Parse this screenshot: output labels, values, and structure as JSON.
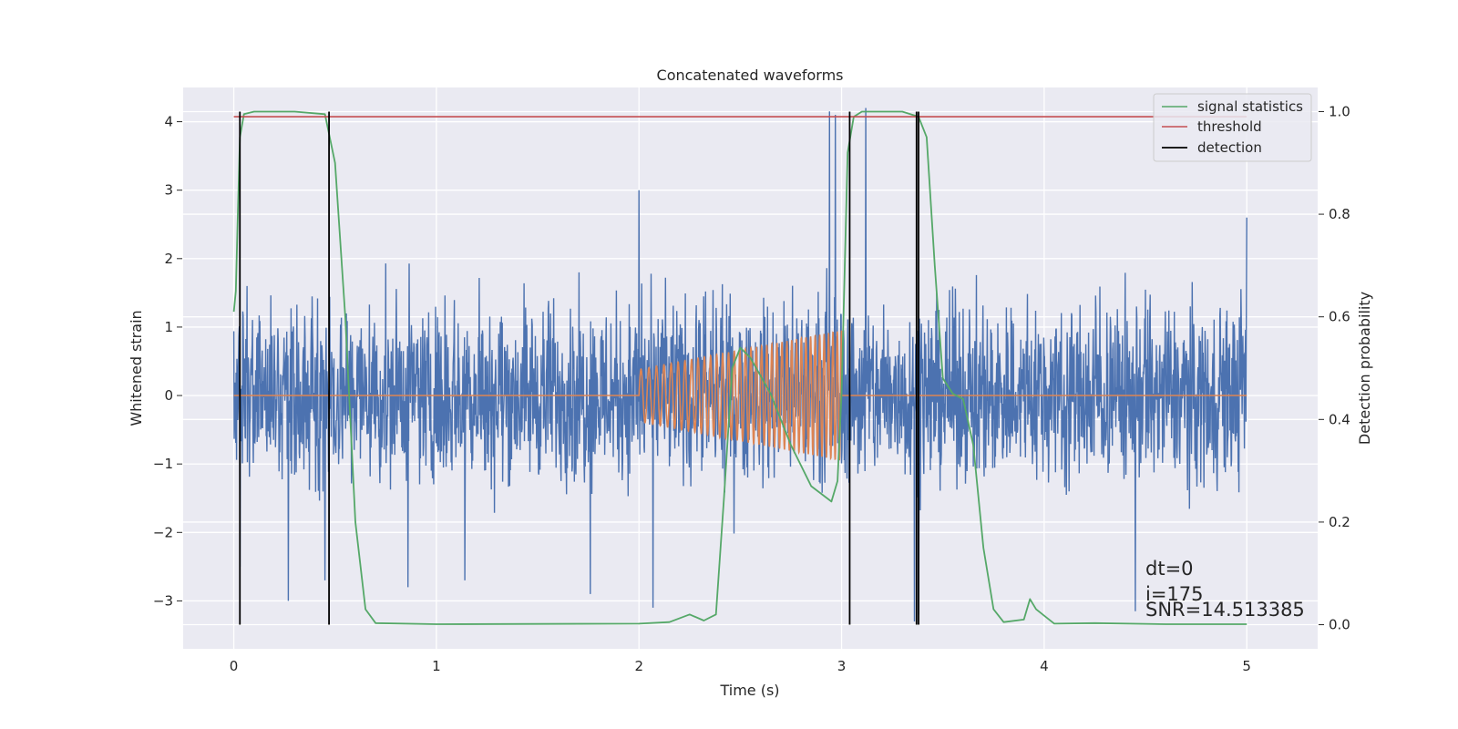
{
  "chart_data": {
    "type": "line",
    "title": "Concatenated waveforms",
    "xlabel": "Time (s)",
    "ylabel": "Whitened strain",
    "ylabel_right": "Detection probability",
    "xlim": [
      -0.25,
      5.35
    ],
    "ylim": [
      -3.7,
      4.5
    ],
    "ylim_right": [
      -0.047,
      1.047
    ],
    "x_ticks": [
      0,
      1,
      2,
      3,
      4,
      5
    ],
    "x_tick_labels": [
      "0",
      "1",
      "2",
      "3",
      "4",
      "5"
    ],
    "y_ticks": [
      -3,
      -2,
      -1,
      0,
      1,
      2,
      3,
      4
    ],
    "y_tick_labels": [
      "−3",
      "−2",
      "−1",
      "0",
      "1",
      "2",
      "3",
      "4"
    ],
    "y_right_ticks": [
      0.0,
      0.2,
      0.4,
      0.6,
      0.8,
      1.0
    ],
    "y_right_tick_labels": [
      "0.0",
      "0.2",
      "0.4",
      "0.6",
      "0.8",
      "1.0"
    ],
    "grid": true,
    "legend_position": "top-right",
    "series": [
      {
        "name": "",
        "kind": "noise",
        "axis": "left",
        "color": "#4c72b0",
        "x_range": [
          0,
          5
        ],
        "typical_amplitude": [
          -1.8,
          2.0
        ],
        "extremes": [
          {
            "x": 0.03,
            "y": -2.5
          },
          {
            "x": 0.27,
            "y": -3.0
          },
          {
            "x": 0.45,
            "y": -2.7
          },
          {
            "x": 0.86,
            "y": -2.8
          },
          {
            "x": 1.14,
            "y": -2.7
          },
          {
            "x": 1.76,
            "y": -2.9
          },
          {
            "x": 2.0,
            "y": 3.0
          },
          {
            "x": 2.07,
            "y": -3.1
          },
          {
            "x": 2.94,
            "y": 4.15
          },
          {
            "x": 2.97,
            "y": 4.1
          },
          {
            "x": 3.12,
            "y": 4.2
          },
          {
            "x": 3.36,
            "y": -3.3
          },
          {
            "x": 3.38,
            "y": -3.2
          },
          {
            "x": 4.45,
            "y": -3.15
          },
          {
            "x": 5.0,
            "y": 2.6
          }
        ]
      },
      {
        "name": "",
        "kind": "chirp",
        "axis": "left",
        "color": "#dd8452",
        "x_range": [
          0,
          5
        ],
        "chirp_x_range": [
          2.0,
          3.0
        ],
        "chirp_amplitude": [
          0.38,
          0.95
        ],
        "chirp_cycles": 25
      },
      {
        "name": "signal statistics",
        "axis": "right",
        "color": "#55a868",
        "x": [
          0,
          0.01,
          0.02,
          0.03,
          0.05,
          0.1,
          0.3,
          0.45,
          0.5,
          0.55,
          0.6,
          0.65,
          0.7,
          1.0,
          2.0,
          2.15,
          2.25,
          2.32,
          2.38,
          2.42,
          2.46,
          2.5,
          2.55,
          2.65,
          2.75,
          2.85,
          2.95,
          2.98,
          3.0,
          3.03,
          3.06,
          3.1,
          3.3,
          3.38,
          3.42,
          3.46,
          3.5,
          3.55,
          3.6,
          3.65,
          3.7,
          3.75,
          3.8,
          3.9,
          3.93,
          3.96,
          4.05,
          4.25,
          4.6,
          5.0
        ],
        "y": [
          0.61,
          0.65,
          0.8,
          0.95,
          0.995,
          1.0,
          1.0,
          0.995,
          0.9,
          0.6,
          0.2,
          0.03,
          0.003,
          0.001,
          0.002,
          0.005,
          0.02,
          0.008,
          0.02,
          0.25,
          0.5,
          0.54,
          0.52,
          0.45,
          0.35,
          0.27,
          0.24,
          0.28,
          0.45,
          0.92,
          0.99,
          1.0,
          1.0,
          0.99,
          0.95,
          0.7,
          0.48,
          0.45,
          0.44,
          0.35,
          0.15,
          0.03,
          0.005,
          0.01,
          0.05,
          0.03,
          0.002,
          0.003,
          0.001,
          0.001
        ]
      },
      {
        "name": "threshold",
        "axis": "right",
        "color": "#c44e52",
        "x": [
          0,
          5
        ],
        "y": [
          0.99,
          0.99
        ]
      },
      {
        "name": "detection",
        "axis": "right",
        "color": "#000000",
        "vlines": [
          0.03,
          0.47,
          3.04,
          3.37,
          3.38
        ]
      }
    ],
    "annotations": [
      "dt=0",
      "i=175",
      "SNR=14.513385"
    ]
  }
}
